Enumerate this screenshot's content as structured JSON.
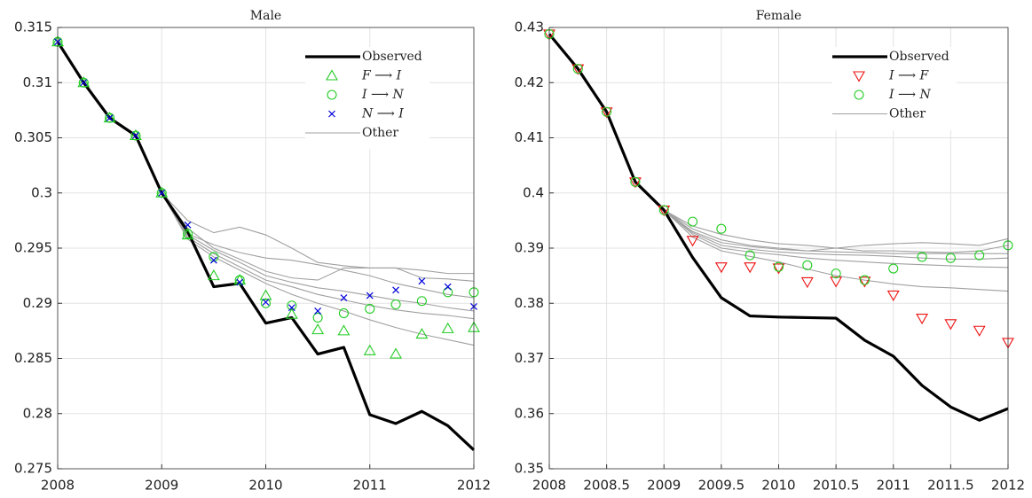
{
  "chart_data": [
    {
      "type": "line",
      "title": "Male",
      "x": [
        2008,
        2008.25,
        2008.5,
        2008.75,
        2009,
        2009.25,
        2009.5,
        2009.75,
        2010,
        2010.25,
        2010.5,
        2010.75,
        2011,
        2011.25,
        2011.5,
        2011.75,
        2012
      ],
      "xlim": [
        2008,
        2012
      ],
      "xticks": [
        2008,
        2009,
        2010,
        2011,
        2012
      ],
      "ylim": [
        0.275,
        0.315
      ],
      "yticks": [
        0.275,
        0.28,
        0.285,
        0.29,
        0.295,
        0.3,
        0.305,
        0.31,
        0.315
      ],
      "grid": true,
      "legend": "upper right",
      "series": [
        {
          "name": "Observed",
          "color": "#000000",
          "marker": "line",
          "values": [
            0.3137,
            0.31,
            0.3068,
            0.3052,
            0.3,
            0.2965,
            0.2915,
            0.2918,
            0.2882,
            0.2887,
            0.2854,
            0.286,
            0.2799,
            0.2791,
            0.2802,
            0.2789,
            0.2767
          ]
        },
        {
          "name": "F ⟶ I",
          "color": "#22cc22",
          "marker": "triangle-up",
          "values": [
            0.3137,
            0.31,
            0.3068,
            0.3052,
            0.3,
            0.2962,
            0.2925,
            0.2921,
            0.2907,
            0.289,
            0.2876,
            0.2875,
            0.2857,
            0.2854,
            0.2872,
            0.2877,
            0.2878
          ]
        },
        {
          "name": "I ⟶ N",
          "color": "#22cc22",
          "marker": "circle",
          "values": [
            0.3137,
            0.31,
            0.3068,
            0.3052,
            0.3,
            0.2963,
            0.2942,
            0.2921,
            0.29,
            0.2898,
            0.2887,
            0.2891,
            0.2895,
            0.2899,
            0.2902,
            0.291,
            0.291
          ]
        },
        {
          "name": "N ⟶ I",
          "color": "#0000dd",
          "marker": "x",
          "values": [
            0.3137,
            0.31,
            0.3068,
            0.3052,
            0.3,
            0.2971,
            0.2939,
            0.2919,
            0.2901,
            0.2896,
            0.2893,
            0.2905,
            0.2907,
            0.2912,
            0.292,
            0.2915,
            0.2897
          ]
        },
        {
          "name": "Other",
          "color": "#a0a0a0",
          "marker": "thin-line",
          "lines": [
            [
              0.3137,
              0.31,
              0.3068,
              0.3052,
              0.3,
              0.2975,
              0.2964,
              0.2969,
              0.2962,
              0.295,
              0.2937,
              0.2934,
              0.2932,
              0.2932,
              0.293,
              0.2927,
              0.2927
            ],
            [
              0.3137,
              0.31,
              0.3068,
              0.3052,
              0.3,
              0.2968,
              0.295,
              0.294,
              0.2929,
              0.2923,
              0.2921,
              0.2932,
              0.2932,
              0.2932,
              0.2923,
              0.2922,
              0.292
            ],
            [
              0.3137,
              0.31,
              0.3068,
              0.3052,
              0.3,
              0.2963,
              0.2953,
              0.2946,
              0.2941,
              0.2939,
              0.2935,
              0.293,
              0.2925,
              0.2918,
              0.2913,
              0.2908,
              0.2905
            ],
            [
              0.3137,
              0.31,
              0.3068,
              0.3052,
              0.3,
              0.2962,
              0.2948,
              0.2937,
              0.2925,
              0.2919,
              0.2914,
              0.2911,
              0.2907,
              0.2903,
              0.29,
              0.2896,
              0.2893
            ],
            [
              0.3137,
              0.31,
              0.3068,
              0.3052,
              0.3,
              0.296,
              0.2945,
              0.2933,
              0.2921,
              0.2915,
              0.2908,
              0.2903,
              0.2898,
              0.2894,
              0.2891,
              0.2889,
              0.2886
            ],
            [
              0.3137,
              0.31,
              0.3068,
              0.3052,
              0.3,
              0.2958,
              0.2942,
              0.293,
              0.2918,
              0.2908,
              0.29,
              0.2893,
              0.2885,
              0.2878,
              0.2872,
              0.2867,
              0.2862
            ]
          ]
        }
      ]
    },
    {
      "type": "line",
      "title": "Female",
      "x": [
        2008,
        2008.25,
        2008.5,
        2008.75,
        2009,
        2009.25,
        2009.5,
        2009.75,
        2010,
        2010.25,
        2010.5,
        2010.75,
        2011,
        2011.25,
        2011.5,
        2011.75,
        2012
      ],
      "xlim": [
        2008,
        2012
      ],
      "xticks": [
        2008,
        2008.5,
        2009,
        2009.5,
        2010,
        2010.5,
        2011,
        2011.5,
        2012
      ],
      "ylim": [
        0.35,
        0.43
      ],
      "yticks": [
        0.35,
        0.36,
        0.37,
        0.38,
        0.39,
        0.4,
        0.41,
        0.42,
        0.43
      ],
      "grid": true,
      "legend": "upper right",
      "series": [
        {
          "name": "Observed",
          "color": "#000000",
          "marker": "line",
          "values": [
            0.4288,
            0.4225,
            0.4147,
            0.402,
            0.3969,
            0.3883,
            0.381,
            0.3777,
            0.3775,
            0.3774,
            0.3773,
            0.3733,
            0.3704,
            0.3651,
            0.3612,
            0.3588,
            0.3609
          ]
        },
        {
          "name": "I ⟶ F",
          "color": "#ee1111",
          "marker": "triangle-down",
          "values": [
            0.4288,
            0.4225,
            0.4147,
            0.402,
            0.3969,
            0.3914,
            0.3866,
            0.3866,
            0.3864,
            0.3839,
            0.384,
            0.384,
            0.3815,
            0.3773,
            0.3763,
            0.3751,
            0.3729
          ]
        },
        {
          "name": "I ⟶ N",
          "color": "#22cc22",
          "marker": "circle",
          "values": [
            0.4288,
            0.4225,
            0.4147,
            0.402,
            0.3969,
            0.3948,
            0.3935,
            0.3887,
            0.3866,
            0.3869,
            0.3854,
            0.3842,
            0.3863,
            0.3884,
            0.3882,
            0.3887,
            0.3905
          ]
        },
        {
          "name": "Other",
          "color": "#a0a0a0",
          "marker": "thin-line",
          "lines": [
            [
              0.4288,
              0.4225,
              0.4147,
              0.402,
              0.3969,
              0.394,
              0.3925,
              0.3915,
              0.3908,
              0.3905,
              0.39,
              0.3905,
              0.3908,
              0.391,
              0.3908,
              0.3905,
              0.3917
            ],
            [
              0.4288,
              0.4225,
              0.4147,
              0.402,
              0.3969,
              0.3935,
              0.3915,
              0.3905,
              0.39,
              0.3895,
              0.39,
              0.3895,
              0.3895,
              0.3893,
              0.3892,
              0.3895,
              0.3905
            ],
            [
              0.4288,
              0.4225,
              0.4147,
              0.402,
              0.3969,
              0.393,
              0.391,
              0.3903,
              0.3898,
              0.3895,
              0.3893,
              0.3892,
              0.389,
              0.389,
              0.389,
              0.389,
              0.389
            ],
            [
              0.4288,
              0.4225,
              0.4147,
              0.402,
              0.3969,
              0.3928,
              0.3905,
              0.3898,
              0.3893,
              0.389,
              0.3888,
              0.3887,
              0.3885,
              0.3882,
              0.388,
              0.388,
              0.3882
            ],
            [
              0.4288,
              0.4225,
              0.4147,
              0.402,
              0.3969,
              0.3925,
              0.39,
              0.3893,
              0.3888,
              0.3882,
              0.3878,
              0.3875,
              0.3872,
              0.387,
              0.3868,
              0.3866,
              0.3865
            ],
            [
              0.4288,
              0.4225,
              0.4147,
              0.402,
              0.3969,
              0.392,
              0.3895,
              0.3885,
              0.3875,
              0.3862,
              0.385,
              0.3842,
              0.3835,
              0.383,
              0.3828,
              0.3825,
              0.3822
            ]
          ]
        }
      ]
    }
  ]
}
